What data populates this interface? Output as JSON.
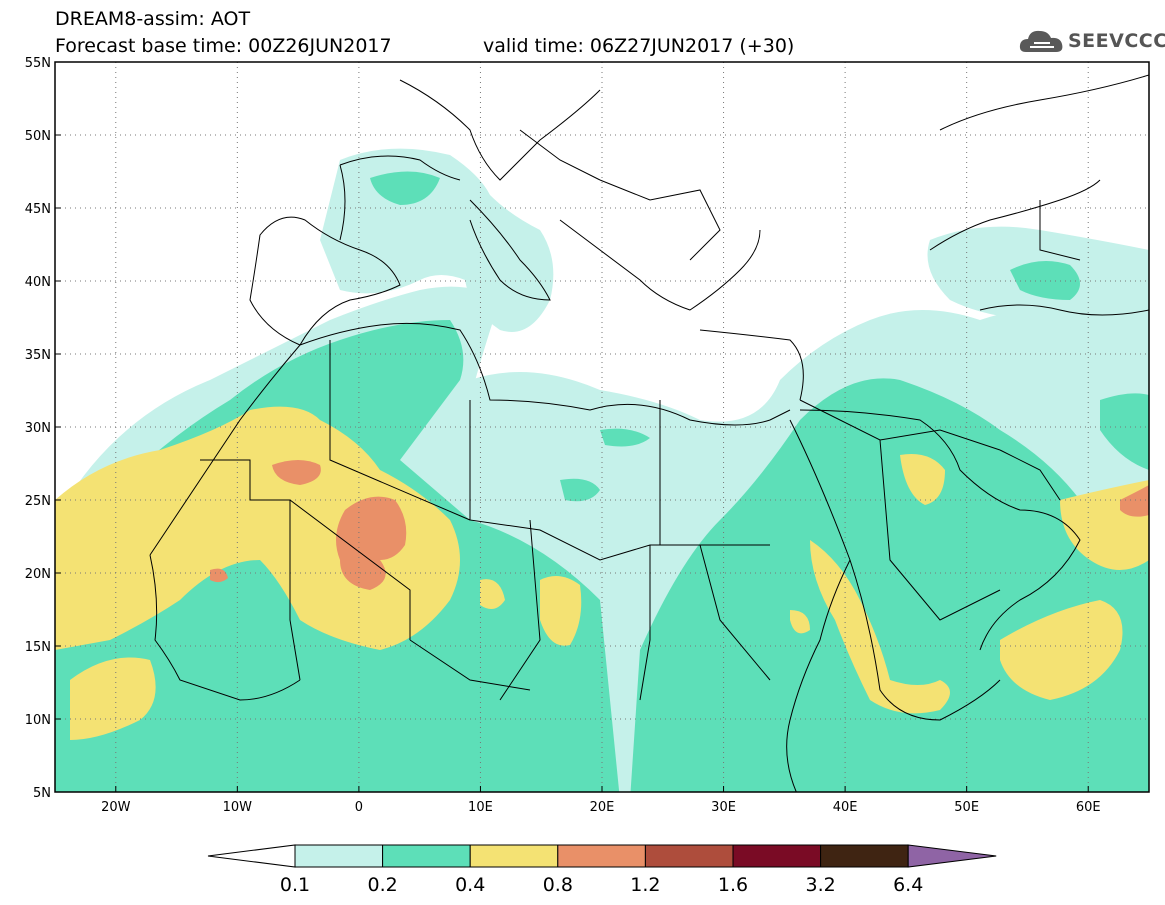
{
  "header": {
    "line1": "DREAM8-assim: AOT",
    "line2": "Forecast base time: 00Z26JUN2017",
    "valid": "valid time: 06Z27JUN2017 (+30)"
  },
  "logo": {
    "text": "SEEVCCC",
    "icon": "cloud-icon"
  },
  "axes": {
    "lat_labels": [
      "55N",
      "50N",
      "45N",
      "40N",
      "35N",
      "30N",
      "25N",
      "20N",
      "15N",
      "10N",
      "5N"
    ],
    "lon_labels": [
      "20W",
      "10W",
      "0",
      "10E",
      "20E",
      "30E",
      "40E",
      "50E",
      "60E"
    ],
    "lat_values": [
      55,
      50,
      45,
      40,
      35,
      30,
      25,
      20,
      15,
      10,
      5
    ],
    "lon_values": [
      -20,
      -10,
      0,
      10,
      20,
      30,
      40,
      50,
      60
    ],
    "lon_range": [
      -25,
      65
    ],
    "lat_range": [
      5,
      55
    ],
    "grid": "dotted"
  },
  "colorbar": {
    "labels": [
      "0.1",
      "0.2",
      "0.4",
      "0.8",
      "1.2",
      "1.6",
      "3.2",
      "6.4"
    ],
    "colors": [
      "#c5f1ea",
      "#5ddfb8",
      "#f4e273",
      "#e99068",
      "#ae4d3c",
      "#7a0b25",
      "#3f2412",
      "#8f64a5"
    ]
  },
  "fields": {
    "c01": "#c5f1ea",
    "c02": "#5ddfb8",
    "c04": "#f4e273",
    "c08": "#e99068",
    "c12": "#ae4d3c"
  }
}
